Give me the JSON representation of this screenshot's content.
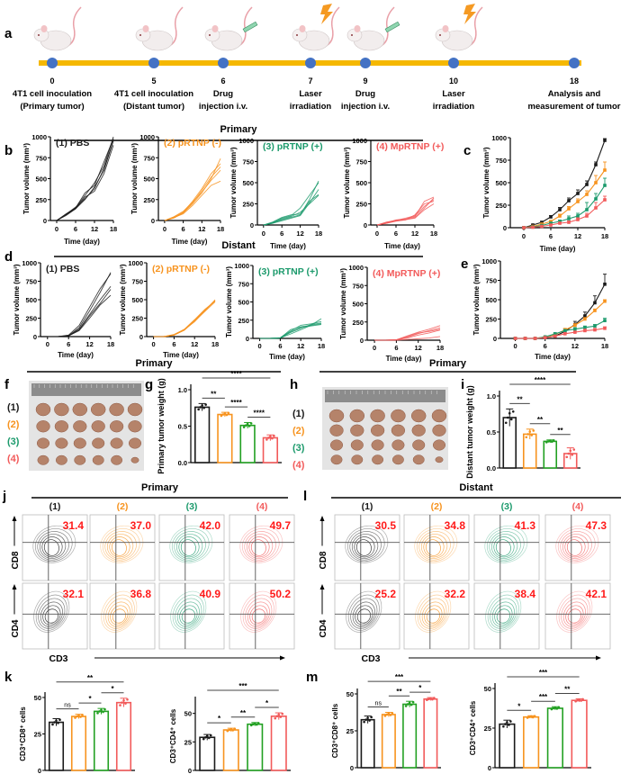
{
  "panel_letters": {
    "a": "a",
    "b": "b",
    "c": "c",
    "d": "d",
    "e": "e",
    "f": "f",
    "g": "g",
    "h": "h",
    "i": "i",
    "j": "j",
    "k": "k",
    "l": "l",
    "m": "m"
  },
  "headers": {
    "primary": "Primary",
    "distant": "Distant"
  },
  "groups": {
    "labels": [
      "(1) PBS",
      "(2) pRTNP (-)",
      "(3) pRTNP (+)",
      "(4) MpRTNP (+)"
    ],
    "short": [
      "(1)",
      "(2)",
      "(3)",
      "(4)"
    ],
    "colors": [
      "#1a1a1a",
      "#f7931e",
      "#1c9a6c",
      "#f25a5a"
    ],
    "bar_colors": [
      "#1a1a1a",
      "#f7931e",
      "#22a022",
      "#f25a5a"
    ]
  },
  "timeline": {
    "bar_color": "#f5b800",
    "dot_color": "#4472c4",
    "events": [
      {
        "day": "0",
        "lines": [
          "4T1 cell inoculation",
          "(Primary tumor)"
        ],
        "icon": "mouse"
      },
      {
        "day": "5",
        "lines": [
          "4T1 cell inoculation",
          "(Distant tumor)"
        ],
        "icon": "mouse"
      },
      {
        "day": "6",
        "lines": [
          "Drug",
          "injection i.v."
        ],
        "icon": "mouse-syringe"
      },
      {
        "day": "7",
        "lines": [
          "Laser",
          "irradiation"
        ],
        "icon": "mouse-laser"
      },
      {
        "day": "9",
        "lines": [
          "Drug",
          "injection i.v."
        ],
        "icon": "mouse-syringe"
      },
      {
        "day": "10",
        "lines": [
          "Laser",
          "irradiation"
        ],
        "icon": "mouse-laser"
      },
      {
        "day": "18",
        "lines": [
          "Analysis and",
          "measurement of tumor"
        ],
        "icon": "none"
      }
    ]
  },
  "flow": {
    "x_label": "CD3",
    "row_labels": [
      "CD8",
      "CD4"
    ],
    "value_color": "#ff1a1a",
    "j": {
      "cd8": [
        "31.4",
        "37.0",
        "42.0",
        "49.7"
      ],
      "cd4": [
        "32.1",
        "36.8",
        "40.9",
        "50.2"
      ]
    },
    "l": {
      "cd8": [
        "30.5",
        "34.8",
        "41.3",
        "47.3"
      ],
      "cd4": [
        "25.2",
        "32.2",
        "38.4",
        "42.1"
      ]
    }
  },
  "photo": {
    "rows": 4,
    "cols": 6,
    "ruler_color": "#8c8c8c",
    "tumor_color": "#b5836a"
  },
  "chart_data": [
    {
      "id": "b",
      "type": "line",
      "subject": "Primary",
      "xlabel": "Time (day)",
      "ylabel": "Tumor volume (mm³)",
      "x": [
        0,
        3,
        6,
        9,
        12,
        15,
        18
      ],
      "xticks": [
        0,
        6,
        12,
        18
      ],
      "yticks": [
        0,
        250,
        500,
        750,
        1000
      ],
      "ylim": [
        0,
        1000
      ],
      "panels": [
        {
          "title": "(1) PBS",
          "series": [
            [
              0,
              70,
              150,
              300,
              450,
              650,
              1000
            ],
            [
              0,
              60,
              140,
              250,
              400,
              600,
              950
            ],
            [
              0,
              80,
              150,
              330,
              420,
              700,
              980
            ],
            [
              0,
              70,
              140,
              280,
              350,
              560,
              900
            ],
            [
              0,
              75,
              160,
              260,
              380,
              620,
              960
            ]
          ]
        },
        {
          "title": "(2) pRTNP (-)",
          "series": [
            [
              0,
              30,
              90,
              200,
              330,
              500,
              740
            ],
            [
              0,
              40,
              100,
              230,
              380,
              560,
              680
            ],
            [
              0,
              35,
              80,
              180,
              300,
              420,
              470
            ],
            [
              0,
              30,
              95,
              210,
              360,
              520,
              640
            ],
            [
              0,
              45,
              110,
              220,
              340,
              480,
              600
            ]
          ]
        },
        {
          "title": "(3) pRTNP (+)",
          "series": [
            [
              0,
              20,
              60,
              90,
              120,
              300,
              520
            ],
            [
              0,
              30,
              70,
              100,
              150,
              250,
              350
            ],
            [
              0,
              25,
              80,
              110,
              200,
              350,
              500
            ],
            [
              0,
              35,
              90,
              120,
              130,
              280,
              360
            ],
            [
              0,
              20,
              50,
              80,
              110,
              260,
              420
            ]
          ]
        },
        {
          "title": "(4) MpRTNP (+)",
          "series": [
            [
              0,
              20,
              50,
              60,
              90,
              200,
              320
            ],
            [
              0,
              25,
              60,
              70,
              100,
              280,
              330
            ],
            [
              0,
              30,
              50,
              65,
              80,
              180,
              250
            ],
            [
              0,
              20,
              45,
              60,
              120,
              250,
              280
            ],
            [
              0,
              35,
              55,
              80,
              110,
              220,
              300
            ]
          ]
        }
      ]
    },
    {
      "id": "c",
      "type": "line",
      "subject": "Primary",
      "xlabel": "Time (day)",
      "ylabel": "Tumor volume (mm³)",
      "x": [
        0,
        2,
        4,
        6,
        8,
        10,
        12,
        14,
        16,
        18
      ],
      "xticks": [
        0,
        6,
        12,
        18
      ],
      "yticks": [
        0,
        250,
        500,
        750,
        1000
      ],
      "ylim": [
        0,
        1000
      ],
      "series": [
        {
          "values": [
            0,
            30,
            60,
            120,
            200,
            300,
            380,
            480,
            700,
            970
          ],
          "sd": [
            0,
            5,
            10,
            15,
            25,
            30,
            40,
            40,
            30,
            20
          ]
        },
        {
          "values": [
            0,
            15,
            40,
            70,
            130,
            210,
            290,
            370,
            500,
            640
          ],
          "sd": [
            0,
            5,
            8,
            10,
            20,
            25,
            30,
            40,
            80,
            90
          ]
        },
        {
          "values": [
            0,
            10,
            25,
            50,
            70,
            100,
            130,
            200,
            320,
            470
          ],
          "sd": [
            0,
            3,
            5,
            10,
            15,
            30,
            30,
            80,
            60,
            80
          ]
        },
        {
          "values": [
            0,
            5,
            15,
            30,
            50,
            60,
            90,
            130,
            220,
            310
          ],
          "sd": [
            0,
            2,
            5,
            8,
            10,
            15,
            20,
            30,
            60,
            40
          ]
        }
      ]
    },
    {
      "id": "d",
      "type": "line",
      "subject": "Distant",
      "xlabel": "Time (day)",
      "ylabel": "Tumor volume (mm³)",
      "x": [
        0,
        3,
        6,
        9,
        12,
        15,
        18
      ],
      "xticks": [
        0,
        6,
        12,
        18
      ],
      "yticks": [
        0,
        250,
        500,
        750,
        1000
      ],
      "ylim": [
        0,
        1000
      ],
      "panels": [
        {
          "title": "(1) PBS",
          "series": [
            [
              0,
              0,
              10,
              120,
              350,
              600,
              870
            ],
            [
              0,
              0,
              15,
              100,
              300,
              500,
              680
            ],
            [
              0,
              0,
              10,
              80,
              250,
              430,
              560
            ],
            [
              0,
              0,
              20,
              150,
              400,
              650,
              850
            ],
            [
              0,
              0,
              10,
              90,
              280,
              450,
              640
            ]
          ]
        },
        {
          "title": "(2) pRTNP (-)",
          "series": [
            [
              0,
              0,
              20,
              90,
              220,
              360,
              490
            ],
            [
              0,
              0,
              25,
              100,
              230,
              370,
              480
            ],
            [
              0,
              0,
              20,
              85,
              210,
              340,
              470
            ],
            [
              0,
              0,
              30,
              95,
              200,
              350,
              500
            ],
            [
              0,
              0,
              20,
              90,
              220,
              355,
              485
            ]
          ]
        },
        {
          "title": "(3) pRTNP (+)",
          "series": [
            [
              0,
              0,
              5,
              120,
              160,
              180,
              270
            ],
            [
              0,
              0,
              5,
              80,
              140,
              190,
              210
            ],
            [
              0,
              0,
              5,
              60,
              120,
              180,
              200
            ],
            [
              0,
              0,
              10,
              100,
              180,
              200,
              230
            ],
            [
              0,
              0,
              5,
              90,
              150,
              170,
              190
            ]
          ]
        },
        {
          "title": "(4) MpRTNP (+)",
          "series": [
            [
              0,
              0,
              5,
              60,
              110,
              150,
              200
            ],
            [
              0,
              0,
              5,
              40,
              90,
              130,
              170
            ],
            [
              0,
              0,
              5,
              30,
              70,
              100,
              140
            ],
            [
              0,
              0,
              5,
              50,
              100,
              120,
              150
            ],
            [
              0,
              0,
              0,
              10,
              20,
              30,
              50
            ]
          ]
        }
      ]
    },
    {
      "id": "e",
      "type": "line",
      "subject": "Distant",
      "xlabel": "Time (day)",
      "ylabel": "Tumor volume (mm³)",
      "x": [
        0,
        2,
        4,
        6,
        8,
        10,
        12,
        14,
        16,
        18
      ],
      "xticks": [
        0,
        6,
        12,
        18
      ],
      "yticks": [
        0,
        250,
        500,
        750,
        1000
      ],
      "ylim": [
        0,
        1000
      ],
      "series": [
        {
          "values": [
            0,
            0,
            0,
            10,
            30,
            90,
            180,
            290,
            460,
            700
          ],
          "sd": [
            0,
            0,
            0,
            5,
            15,
            30,
            40,
            50,
            90,
            130
          ]
        },
        {
          "values": [
            0,
            0,
            0,
            20,
            50,
            110,
            170,
            250,
            360,
            480
          ],
          "sd": [
            0,
            0,
            0,
            5,
            10,
            20,
            20,
            20,
            20,
            20
          ]
        },
        {
          "values": [
            0,
            0,
            0,
            20,
            60,
            100,
            120,
            140,
            160,
            230
          ],
          "sd": [
            0,
            0,
            0,
            5,
            10,
            10,
            20,
            20,
            20,
            30
          ]
        },
        {
          "values": [
            0,
            0,
            0,
            10,
            30,
            60,
            80,
            100,
            110,
            130
          ],
          "sd": [
            0,
            0,
            0,
            5,
            5,
            10,
            10,
            20,
            20,
            20
          ]
        }
      ]
    },
    {
      "id": "g",
      "type": "bar",
      "ylabel": "Primary tumor weight (g)",
      "yticks": [
        0,
        0.5,
        1.0
      ],
      "ytick_labels": [
        "0.0",
        "0.5",
        "1.0"
      ],
      "ylim": [
        0,
        1
      ],
      "values": [
        0.76,
        0.66,
        0.51,
        0.34
      ],
      "sd": [
        0.05,
        0.03,
        0.04,
        0.04
      ],
      "significance": [
        {
          "pair": [
            1,
            4
          ],
          "label": "****"
        },
        {
          "pair": [
            1,
            2
          ],
          "label": "**"
        },
        {
          "pair": [
            2,
            3
          ],
          "label": "****"
        },
        {
          "pair": [
            3,
            4
          ],
          "label": "****"
        }
      ]
    },
    {
      "id": "i",
      "type": "bar",
      "ylabel": "Distant tumor weight (g)",
      "yticks": [
        0,
        0.5,
        1.0
      ],
      "ytick_labels": [
        "0.0",
        "0.5",
        "1.0"
      ],
      "ylim": [
        0,
        1
      ],
      "values": [
        0.7,
        0.47,
        0.37,
        0.2
      ],
      "sd": [
        0.12,
        0.07,
        0.02,
        0.08
      ],
      "significance": [
        {
          "pair": [
            1,
            4
          ],
          "label": "****"
        },
        {
          "pair": [
            1,
            2
          ],
          "label": "**"
        },
        {
          "pair": [
            2,
            3
          ],
          "label": "**"
        },
        {
          "pair": [
            3,
            4
          ],
          "label": "**"
        }
      ]
    },
    {
      "id": "k1",
      "type": "bar",
      "ylabel": "CD3⁺CD8⁺ cells",
      "yticks": [
        0,
        25,
        50
      ],
      "ytick_labels": [
        "0",
        "25",
        "50"
      ],
      "ylim": [
        0,
        50
      ],
      "values": [
        33,
        37,
        40.5,
        46.5
      ],
      "sd": [
        2.5,
        1.5,
        2,
        3
      ],
      "significance": [
        {
          "pair": [
            1,
            4
          ],
          "label": "**"
        },
        {
          "pair": [
            1,
            2
          ],
          "label": "ns"
        },
        {
          "pair": [
            2,
            3
          ],
          "label": "*"
        },
        {
          "pair": [
            3,
            4
          ],
          "label": "*"
        }
      ]
    },
    {
      "id": "k2",
      "type": "bar",
      "ylabel": "CD3⁺CD4⁺ cells",
      "yticks": [
        0,
        25,
        50
      ],
      "ytick_labels": [
        "0",
        "25",
        "50"
      ],
      "ylim": [
        0,
        60
      ],
      "values": [
        29,
        35.5,
        40.5,
        47.5
      ],
      "sd": [
        2.5,
        1.5,
        1.5,
        3
      ],
      "significance": [
        {
          "pair": [
            1,
            4
          ],
          "label": "***"
        },
        {
          "pair": [
            1,
            2
          ],
          "label": "*"
        },
        {
          "pair": [
            2,
            3
          ],
          "label": "**"
        },
        {
          "pair": [
            3,
            4
          ],
          "label": "*"
        }
      ]
    },
    {
      "id": "m1",
      "type": "bar",
      "ylabel": "CD3⁺CD8⁺ cells",
      "yticks": [
        0,
        25,
        50
      ],
      "ytick_labels": [
        "0",
        "25",
        "50"
      ],
      "ylim": [
        0,
        50
      ],
      "values": [
        32.5,
        36,
        43,
        46.5
      ],
      "sd": [
        2.5,
        1.5,
        2,
        1
      ],
      "significance": [
        {
          "pair": [
            1,
            4
          ],
          "label": "***"
        },
        {
          "pair": [
            1,
            2
          ],
          "label": "ns"
        },
        {
          "pair": [
            2,
            3
          ],
          "label": "**"
        },
        {
          "pair": [
            3,
            4
          ],
          "label": "*"
        }
      ]
    },
    {
      "id": "m2",
      "type": "bar",
      "ylabel": "CD3⁺CD4⁺ cells",
      "yticks": [
        0,
        25,
        50
      ],
      "ytick_labels": [
        "0",
        "25",
        "50"
      ],
      "ylim": [
        0,
        50
      ],
      "values": [
        27.5,
        32,
        37.5,
        42.5
      ],
      "sd": [
        2.5,
        0.8,
        1,
        1
      ],
      "significance": [
        {
          "pair": [
            1,
            4
          ],
          "label": "***"
        },
        {
          "pair": [
            1,
            2
          ],
          "label": "*"
        },
        {
          "pair": [
            2,
            3
          ],
          "label": "***"
        },
        {
          "pair": [
            3,
            4
          ],
          "label": "**"
        }
      ]
    }
  ]
}
